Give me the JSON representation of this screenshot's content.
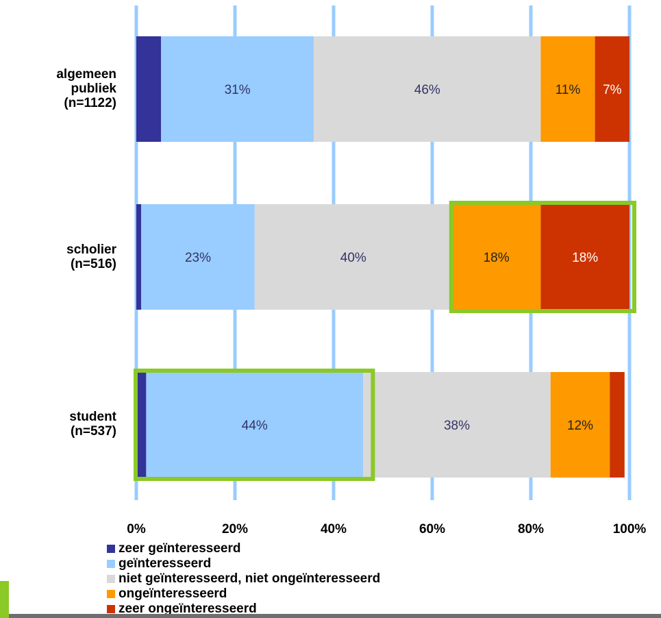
{
  "chart_data": {
    "type": "bar",
    "orientation": "horizontal",
    "stacked": true,
    "categories": [
      "algemeen\npubliek\n(n=1122)",
      "scholier\n(n=516)",
      "student\n(n=537)"
    ],
    "series": [
      {
        "name": "zeer geïnteresseerd",
        "color": "#333399",
        "values": [
          5,
          1,
          2
        ],
        "labels": [
          "",
          "",
          ""
        ]
      },
      {
        "name": "geïnteresseerd",
        "color": "#99ccff",
        "values": [
          31,
          23,
          44
        ],
        "labels": [
          "31%",
          "23%",
          "44%"
        ]
      },
      {
        "name": "niet geïnteresseerd, niet ongeïnteresseerd",
        "color": "#d9d9d9",
        "values": [
          46,
          40,
          38
        ],
        "labels": [
          "46%",
          "40%",
          "38%"
        ]
      },
      {
        "name": "ongeïnteresseerd",
        "color": "#ff9900",
        "values": [
          11,
          18,
          12
        ],
        "labels": [
          "11%",
          "18%",
          "12%"
        ]
      },
      {
        "name": "zeer ongeïnteresseerd",
        "color": "#cc3300",
        "values": [
          7,
          18,
          3
        ],
        "labels": [
          "7%",
          "18%",
          ""
        ]
      }
    ],
    "xlim": [
      0,
      100
    ],
    "x_ticks": [
      "0%",
      "20%",
      "40%",
      "60%",
      "80%",
      "100%"
    ],
    "grid": true,
    "gridline_color": "#99ccff",
    "highlight_color": "#8ac926",
    "highlights": [
      {
        "category": 1,
        "from": 64,
        "to": 100
      },
      {
        "category": 2,
        "from": 0,
        "to": 47
      }
    ],
    "legend_position": "bottom-left"
  }
}
